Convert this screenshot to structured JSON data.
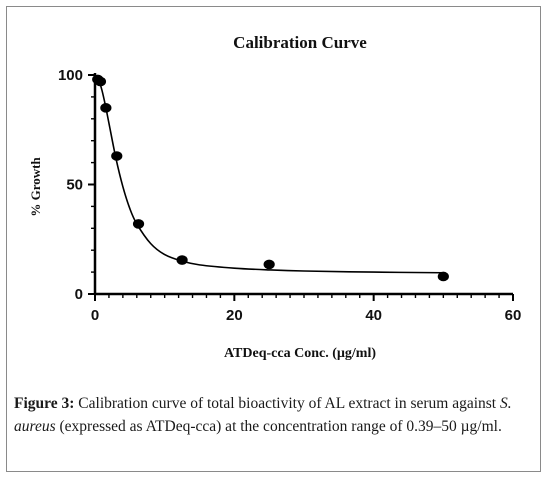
{
  "chart_data": {
    "type": "scatter",
    "title": "Calibration Curve",
    "xlabel": "ATDeq-cca Conc. (µg/ml)",
    "ylabel": "% Growth",
    "xlim": [
      0,
      60
    ],
    "ylim": [
      0,
      100
    ],
    "xticks": [
      "0",
      "20",
      "40",
      "60"
    ],
    "yticks": [
      "0",
      "50",
      "100"
    ],
    "grid": false,
    "points": [
      {
        "x": 0.39,
        "y": 98
      },
      {
        "x": 0.78,
        "y": 97
      },
      {
        "x": 1.56,
        "y": 85
      },
      {
        "x": 3.125,
        "y": 63
      },
      {
        "x": 6.25,
        "y": 32
      },
      {
        "x": 12.5,
        "y": 15.5
      },
      {
        "x": 25,
        "y": 13.5
      },
      {
        "x": 50,
        "y": 8
      }
    ],
    "fit_curve": [
      {
        "x": 0,
        "y": 99
      },
      {
        "x": 0.5,
        "y": 98
      },
      {
        "x": 1,
        "y": 93
      },
      {
        "x": 1.5,
        "y": 86
      },
      {
        "x": 2,
        "y": 78
      },
      {
        "x": 3,
        "y": 62
      },
      {
        "x": 4,
        "y": 49
      },
      {
        "x": 5,
        "y": 39
      },
      {
        "x": 6,
        "y": 32
      },
      {
        "x": 8,
        "y": 23
      },
      {
        "x": 10,
        "y": 18
      },
      {
        "x": 12.5,
        "y": 15
      },
      {
        "x": 15,
        "y": 13.3
      },
      {
        "x": 20,
        "y": 11.8
      },
      {
        "x": 25,
        "y": 11
      },
      {
        "x": 30,
        "y": 10.5
      },
      {
        "x": 40,
        "y": 10
      },
      {
        "x": 50,
        "y": 9.7
      }
    ]
  },
  "caption": {
    "label": "Figure 3:",
    "text_1": " Calibration curve of total bioactivity of AL extract in serum against ",
    "italic": "S. aureus",
    "text_2": " (expressed as ATDeq-cca) at the concentration range of 0.39–50 µg/ml."
  }
}
